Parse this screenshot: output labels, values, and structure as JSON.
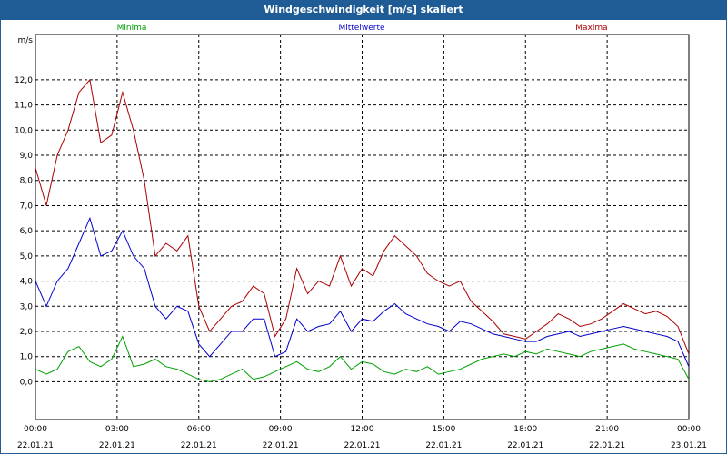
{
  "window": {
    "title": "Windgeschwindigkeit [m/s] skaliert"
  },
  "colors": {
    "minima": "#00a000",
    "mittel": "#0000cc",
    "maxima": "#aa0000",
    "titlebar": "#1f5c95"
  },
  "chart_data": {
    "type": "line",
    "title": "Windgeschwindigkeit [m/s] skaliert",
    "ylabel": "m/s",
    "xlabel": "",
    "ylim": [
      -1.5,
      13.8
    ],
    "yticks": [
      "0,0",
      "1,0",
      "2,0",
      "3,0",
      "4,0",
      "5,0",
      "6,0",
      "7,0",
      "8,0",
      "9,0",
      "10,0",
      "11,0",
      "12,0"
    ],
    "xtick_times": [
      "00:00",
      "03:00",
      "06:00",
      "09:00",
      "12:00",
      "15:00",
      "18:00",
      "21:00",
      "00:00"
    ],
    "xtick_dates": [
      "22.01.21",
      "22.01.21",
      "22.01.21",
      "22.01.21",
      "22.01.21",
      "22.01.21",
      "22.01.21",
      "22.01.21",
      "23.01.21"
    ],
    "x_hours": [
      0.0,
      0.4,
      0.8,
      1.2,
      1.6,
      2.0,
      2.4,
      2.8,
      3.2,
      3.6,
      4.0,
      4.4,
      4.8,
      5.2,
      5.6,
      6.0,
      6.4,
      6.8,
      7.2,
      7.6,
      8.0,
      8.4,
      8.8,
      9.2,
      9.6,
      10.0,
      10.4,
      10.8,
      11.2,
      11.6,
      12.0,
      12.4,
      12.8,
      13.2,
      13.6,
      14.0,
      14.4,
      14.8,
      15.2,
      15.6,
      16.0,
      16.4,
      16.8,
      17.2,
      17.6,
      18.0,
      18.4,
      18.8,
      19.2,
      19.6,
      20.0,
      20.4,
      20.8,
      21.2,
      21.6,
      22.0,
      22.4,
      22.8,
      23.2,
      23.6,
      24.0
    ],
    "series": [
      {
        "name": "Minima",
        "values": [
          0.5,
          0.3,
          0.5,
          1.2,
          1.4,
          0.8,
          0.6,
          0.9,
          1.8,
          0.6,
          0.7,
          0.9,
          0.6,
          0.5,
          0.3,
          0.1,
          0.0,
          0.1,
          0.3,
          0.5,
          0.1,
          0.2,
          0.4,
          0.6,
          0.8,
          0.5,
          0.4,
          0.6,
          1.0,
          0.5,
          0.8,
          0.7,
          0.4,
          0.3,
          0.5,
          0.4,
          0.6,
          0.3,
          0.4,
          0.5,
          0.7,
          0.9,
          1.0,
          1.1,
          1.0,
          1.2,
          1.1,
          1.3,
          1.2,
          1.1,
          1.0,
          1.2,
          1.3,
          1.4,
          1.5,
          1.3,
          1.2,
          1.1,
          1.0,
          0.9,
          0.1
        ]
      },
      {
        "name": "Mittelwerte",
        "values": [
          4.0,
          3.0,
          4.0,
          4.5,
          5.5,
          6.5,
          5.0,
          5.2,
          6.0,
          5.0,
          4.5,
          3.0,
          2.5,
          3.0,
          2.8,
          1.5,
          1.0,
          1.5,
          2.0,
          2.0,
          2.5,
          2.5,
          1.0,
          1.2,
          2.5,
          2.0,
          2.2,
          2.3,
          2.8,
          2.0,
          2.5,
          2.4,
          2.8,
          3.1,
          2.7,
          2.5,
          2.3,
          2.2,
          2.0,
          2.4,
          2.3,
          2.1,
          1.9,
          1.8,
          1.7,
          1.6,
          1.6,
          1.8,
          1.9,
          2.0,
          1.8,
          1.9,
          2.0,
          2.1,
          2.2,
          2.1,
          2.0,
          1.9,
          1.8,
          1.6,
          0.6
        ]
      },
      {
        "name": "Maxima",
        "values": [
          8.5,
          7.0,
          9.0,
          10.0,
          11.5,
          12.0,
          9.5,
          9.8,
          11.5,
          10.0,
          8.0,
          5.0,
          5.5,
          5.2,
          5.8,
          3.0,
          2.0,
          2.5,
          3.0,
          3.2,
          3.8,
          3.5,
          1.8,
          2.5,
          4.5,
          3.5,
          4.0,
          3.8,
          5.0,
          3.8,
          4.5,
          4.2,
          5.2,
          5.8,
          5.4,
          5.0,
          4.3,
          4.0,
          3.8,
          4.0,
          3.2,
          2.8,
          2.4,
          1.9,
          1.8,
          1.7,
          2.0,
          2.3,
          2.7,
          2.5,
          2.2,
          2.3,
          2.5,
          2.8,
          3.1,
          2.9,
          2.7,
          2.8,
          2.6,
          2.2,
          1.1
        ]
      }
    ]
  }
}
